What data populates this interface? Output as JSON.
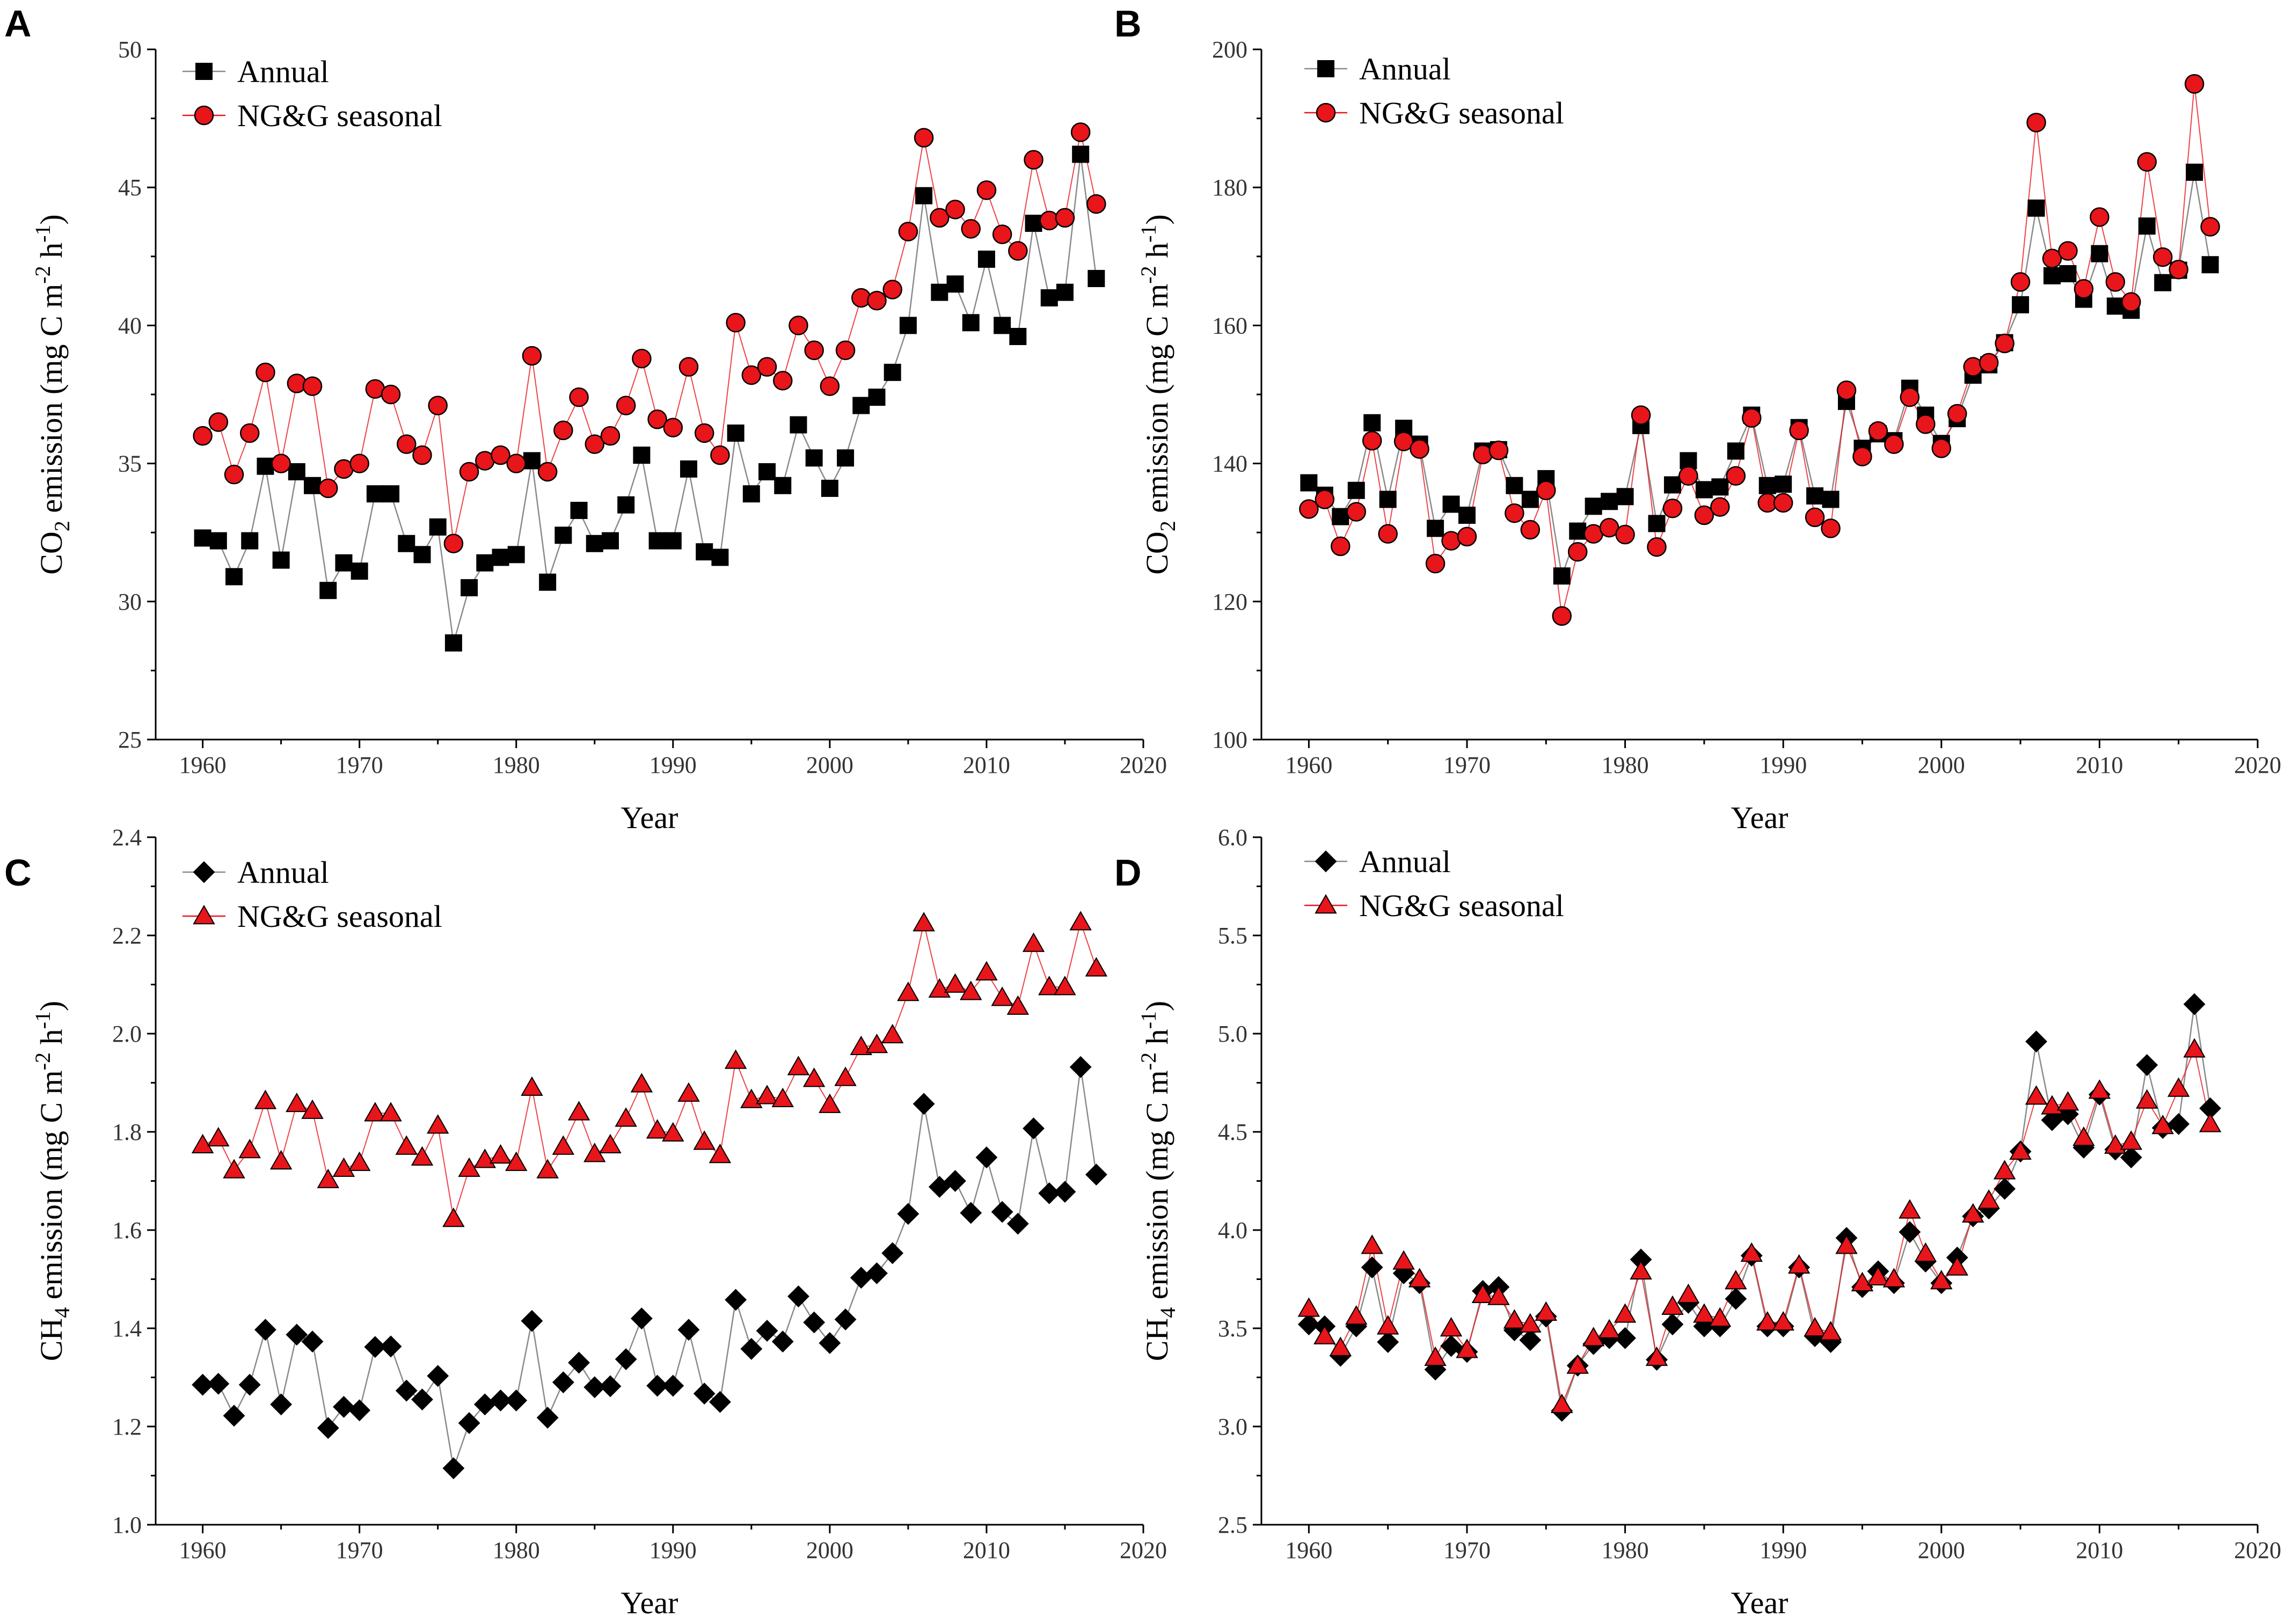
{
  "colors": {
    "annual_marker": "#000000",
    "annual_line": "#8a8a8a",
    "seasonal_marker": "#e8151b",
    "seasonal_line": "#e8151b",
    "axis": "#000000"
  },
  "chart_data": [
    {
      "panel": "A",
      "type": "line",
      "xlabel": "Year",
      "ylabel_main": "CO",
      "ylabel_sub": "2",
      "ylabel_rest": " emission (mg C m",
      "ylabel_sup1": "-2",
      "ylabel_mid": " h",
      "ylabel_sup2": "-1",
      "ylabel_end": ")",
      "xlim": [
        1957,
        2020
      ],
      "ylim": [
        25,
        50
      ],
      "xticks": [
        1960,
        1970,
        1980,
        1990,
        2000,
        2010,
        2020
      ],
      "yticks": [
        "25",
        "30",
        "35",
        "40",
        "45",
        "50"
      ],
      "ytick_values": [
        25,
        30,
        35,
        40,
        45,
        50
      ],
      "legend": "top-left",
      "x_start": 1960,
      "series": [
        {
          "name": "Annual",
          "marker": "square",
          "values": [
            32.3,
            32.2,
            30.9,
            32.2,
            34.9,
            31.5,
            34.7,
            34.2,
            30.4,
            31.4,
            31.1,
            33.9,
            33.9,
            32.1,
            31.7,
            32.7,
            28.5,
            30.5,
            31.4,
            31.6,
            31.7,
            35.1,
            30.7,
            32.4,
            33.3,
            32.1,
            32.2,
            33.5,
            35.3,
            32.2,
            32.2,
            34.8,
            31.8,
            31.6,
            36.1,
            33.9,
            34.7,
            34.2,
            36.4,
            35.2,
            34.1,
            35.2,
            37.1,
            37.4,
            38.3,
            40.0,
            44.7,
            41.2,
            41.5,
            40.1,
            42.4,
            40.0,
            39.6,
            43.7,
            41.0,
            41.2,
            46.2,
            41.7
          ]
        },
        {
          "name": "NG&G seasonal",
          "marker": "circle",
          "values": [
            36.0,
            36.5,
            34.6,
            36.1,
            38.3,
            35.0,
            37.9,
            37.8,
            34.1,
            34.8,
            35.0,
            37.7,
            37.5,
            35.7,
            35.3,
            37.1,
            32.1,
            34.7,
            35.1,
            35.3,
            35.0,
            38.9,
            34.7,
            36.2,
            37.4,
            35.7,
            36.0,
            37.1,
            38.8,
            36.6,
            36.3,
            38.5,
            36.1,
            35.3,
            40.1,
            38.2,
            38.5,
            38.0,
            40.0,
            39.1,
            37.8,
            39.1,
            41.0,
            40.9,
            41.3,
            43.4,
            46.8,
            43.9,
            44.2,
            43.5,
            44.9,
            43.3,
            42.7,
            46.0,
            43.8,
            43.9,
            47.0,
            44.4
          ]
        }
      ]
    },
    {
      "panel": "B",
      "type": "line",
      "xlabel": "Year",
      "ylabel_main": "CO",
      "ylabel_sub": "2",
      "ylabel_rest": " emission (mg C m",
      "ylabel_sup1": "-2",
      "ylabel_mid": " h",
      "ylabel_sup2": "-1",
      "ylabel_end": ")",
      "xlim": [
        1957,
        2020
      ],
      "ylim": [
        100,
        200
      ],
      "xticks": [
        1960,
        1970,
        1980,
        1990,
        2000,
        2010,
        2020
      ],
      "yticks": [
        "100",
        "120",
        "140",
        "160",
        "180",
        "200"
      ],
      "ytick_values": [
        100,
        120,
        140,
        160,
        180,
        200
      ],
      "legend": "top-left",
      "x_start": 1960,
      "series": [
        {
          "name": "Annual",
          "marker": "square",
          "values": [
            137.2,
            135.4,
            132.3,
            136.1,
            145.9,
            134.8,
            145.1,
            142.8,
            130.6,
            134.1,
            132.5,
            141.8,
            142.0,
            136.8,
            134.8,
            137.8,
            123.7,
            130.2,
            133.8,
            134.5,
            135.2,
            145.5,
            131.3,
            136.9,
            140.4,
            136.2,
            136.6,
            141.8,
            147.0,
            136.8,
            137.0,
            145.2,
            135.3,
            134.8,
            149.0,
            142.2,
            144.3,
            143.3,
            150.9,
            147.0,
            142.9,
            146.5,
            152.8,
            154.3,
            157.5,
            163.0,
            177.0,
            167.2,
            167.5,
            163.8,
            170.4,
            162.8,
            162.2,
            174.4,
            166.2,
            168.0,
            182.2,
            168.8
          ]
        },
        {
          "name": "NG&G seasonal",
          "marker": "circle",
          "values": [
            133.4,
            134.8,
            128.0,
            133.0,
            143.3,
            129.8,
            143.2,
            142.1,
            125.5,
            128.8,
            129.4,
            141.3,
            141.9,
            132.8,
            130.4,
            136.1,
            117.9,
            127.2,
            129.8,
            130.7,
            129.7,
            147.0,
            127.9,
            133.5,
            138.2,
            132.5,
            133.7,
            138.2,
            146.6,
            134.3,
            134.3,
            144.8,
            132.2,
            130.6,
            150.6,
            141.0,
            144.7,
            142.8,
            149.6,
            145.7,
            142.2,
            147.2,
            154.0,
            154.6,
            157.4,
            166.3,
            189.4,
            169.7,
            170.8,
            165.3,
            175.7,
            166.3,
            163.4,
            183.7,
            169.9,
            168.1,
            195.0,
            174.3
          ]
        }
      ]
    },
    {
      "panel": "C",
      "type": "line",
      "xlabel": "Year",
      "ylabel_main": "CH",
      "ylabel_sub": "4",
      "ylabel_rest": " emission (mg C m",
      "ylabel_sup1": "-2",
      "ylabel_mid": " h",
      "ylabel_sup2": "-1",
      "ylabel_end": ")",
      "xlim": [
        1957,
        2020
      ],
      "ylim": [
        1.0,
        2.4
      ],
      "xticks": [
        1960,
        1970,
        1980,
        1990,
        2000,
        2010,
        2020
      ],
      "yticks": [
        "1.0",
        "1.2",
        "1.4",
        "1.6",
        "1.8",
        "2.0",
        "2.2",
        "2.4"
      ],
      "ytick_values": [
        1.0,
        1.2,
        1.4,
        1.6,
        1.8,
        2.0,
        2.2,
        2.4
      ],
      "legend": "top-left",
      "x_start": 1960,
      "series": [
        {
          "name": "Annual",
          "marker": "diamond",
          "values": [
            1.285,
            1.287,
            1.222,
            1.285,
            1.397,
            1.245,
            1.387,
            1.373,
            1.197,
            1.24,
            1.233,
            1.362,
            1.363,
            1.273,
            1.255,
            1.303,
            1.115,
            1.207,
            1.245,
            1.253,
            1.253,
            1.415,
            1.218,
            1.29,
            1.33,
            1.28,
            1.282,
            1.337,
            1.42,
            1.283,
            1.283,
            1.397,
            1.267,
            1.25,
            1.458,
            1.358,
            1.395,
            1.373,
            1.465,
            1.412,
            1.37,
            1.418,
            1.503,
            1.512,
            1.553,
            1.633,
            1.857,
            1.688,
            1.7,
            1.635,
            1.748,
            1.637,
            1.613,
            1.807,
            1.675,
            1.678,
            1.932,
            1.713
          ]
        },
        {
          "name": "NG&G seasonal",
          "marker": "triangle",
          "values": [
            1.773,
            1.787,
            1.722,
            1.763,
            1.863,
            1.74,
            1.857,
            1.843,
            1.702,
            1.725,
            1.737,
            1.838,
            1.838,
            1.77,
            1.748,
            1.813,
            1.623,
            1.725,
            1.743,
            1.752,
            1.737,
            1.89,
            1.722,
            1.77,
            1.84,
            1.755,
            1.773,
            1.827,
            1.897,
            1.803,
            1.797,
            1.878,
            1.78,
            1.753,
            1.945,
            1.865,
            1.873,
            1.867,
            1.932,
            1.908,
            1.855,
            1.91,
            1.973,
            1.977,
            1.997,
            2.083,
            2.225,
            2.09,
            2.1,
            2.085,
            2.125,
            2.073,
            2.055,
            2.183,
            2.095,
            2.095,
            2.227,
            2.133
          ]
        }
      ]
    },
    {
      "panel": "D",
      "type": "line",
      "xlabel": "Year",
      "ylabel_main": "CH",
      "ylabel_sub": "4",
      "ylabel_rest": " emission (mg C m",
      "ylabel_sup1": "-2",
      "ylabel_mid": " h",
      "ylabel_sup2": "-1",
      "ylabel_end": ")",
      "xlim": [
        1957,
        2020
      ],
      "ylim": [
        2.5,
        6.0
      ],
      "xticks": [
        1960,
        1970,
        1980,
        1990,
        2000,
        2010,
        2020
      ],
      "yticks": [
        "2.5",
        "3.0",
        "3.5",
        "4.0",
        "4.5",
        "5.0",
        "5.5",
        "6.0"
      ],
      "ytick_values": [
        2.5,
        3.0,
        3.5,
        4.0,
        4.5,
        5.0,
        5.5,
        6.0
      ],
      "legend": "top-left",
      "x_start": 1960,
      "series": [
        {
          "name": "Annual",
          "marker": "diamond",
          "values": [
            3.52,
            3.51,
            3.36,
            3.51,
            3.81,
            3.43,
            3.78,
            3.73,
            3.29,
            3.41,
            3.38,
            3.69,
            3.71,
            3.49,
            3.44,
            3.56,
            3.08,
            3.31,
            3.42,
            3.45,
            3.45,
            3.85,
            3.34,
            3.52,
            3.63,
            3.51,
            3.51,
            3.65,
            3.87,
            3.51,
            3.51,
            3.81,
            3.46,
            3.43,
            3.96,
            3.71,
            3.79,
            3.73,
            3.99,
            3.84,
            3.73,
            3.86,
            4.07,
            4.11,
            4.21,
            4.4,
            4.96,
            4.56,
            4.59,
            4.42,
            4.69,
            4.41,
            4.37,
            4.84,
            4.52,
            4.54,
            5.15,
            4.62
          ]
        },
        {
          "name": "NG&G seasonal",
          "marker": "triangle",
          "values": [
            3.6,
            3.46,
            3.4,
            3.56,
            3.92,
            3.51,
            3.84,
            3.75,
            3.35,
            3.5,
            3.39,
            3.67,
            3.66,
            3.54,
            3.52,
            3.58,
            3.11,
            3.31,
            3.45,
            3.49,
            3.57,
            3.79,
            3.35,
            3.61,
            3.67,
            3.57,
            3.55,
            3.74,
            3.88,
            3.53,
            3.53,
            3.82,
            3.5,
            3.48,
            3.92,
            3.73,
            3.76,
            3.75,
            4.1,
            3.88,
            3.74,
            3.81,
            4.08,
            4.15,
            4.3,
            4.4,
            4.68,
            4.63,
            4.65,
            4.47,
            4.71,
            4.43,
            4.45,
            4.66,
            4.53,
            4.72,
            4.92,
            4.54
          ]
        }
      ]
    }
  ]
}
